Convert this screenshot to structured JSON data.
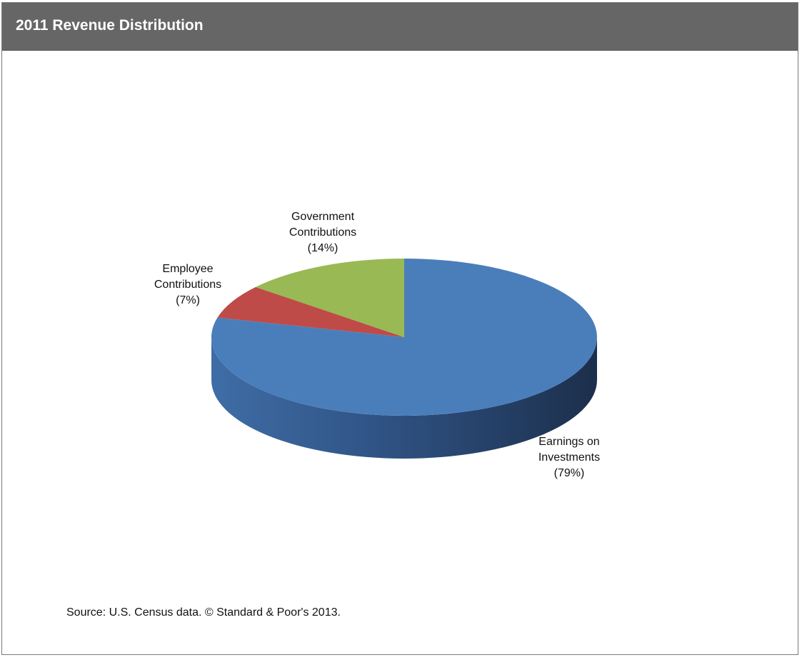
{
  "chart_data": {
    "type": "pie",
    "title": "2011 Revenue Distribution",
    "slices": [
      {
        "label_lines": [
          "Earnings on",
          "Investments"
        ],
        "pct_label": "(79%)",
        "value": 79,
        "color": "#4a7ebb"
      },
      {
        "label_lines": [
          "Employee",
          "Contributions"
        ],
        "pct_label": "(7%)",
        "value": 7,
        "color": "#be4b48"
      },
      {
        "label_lines": [
          "Government",
          "Contributions"
        ],
        "pct_label": "(14%)",
        "value": 14,
        "color": "#98b954"
      }
    ],
    "three_d": true,
    "legend": "none"
  },
  "footer": {
    "source": "Source: U.S. Census data. © Standard & Poor's 2013."
  }
}
